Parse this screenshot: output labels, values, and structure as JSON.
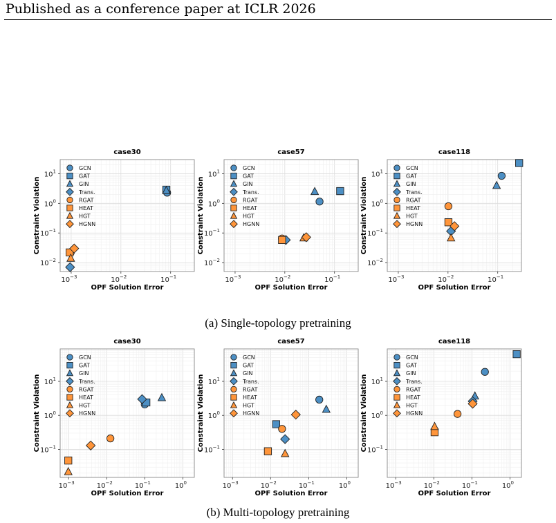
{
  "header": {
    "title": "Published as a conference paper at ICLR 2026"
  },
  "captions": {
    "single": "(a) Single-topology pretraining",
    "multi": "(b) Multi-topology pretraining"
  },
  "colors": {
    "blue": "#4c8fc4",
    "orange": "#ff953a",
    "edge": "#222222"
  },
  "models": [
    {
      "name": "GCN",
      "marker": "circle",
      "color": "blue"
    },
    {
      "name": "GAT",
      "marker": "square",
      "color": "blue"
    },
    {
      "name": "GIN",
      "marker": "triangle",
      "color": "blue"
    },
    {
      "name": "Trans.",
      "marker": "diamond",
      "color": "blue"
    },
    {
      "name": "RGAT",
      "marker": "circle",
      "color": "orange"
    },
    {
      "name": "HEAT",
      "marker": "square",
      "color": "orange"
    },
    {
      "name": "HGT",
      "marker": "triangle",
      "color": "orange"
    },
    {
      "name": "HGNN",
      "marker": "diamond",
      "color": "orange"
    }
  ],
  "chart_data": [
    {
      "type": "scatter",
      "title": "case30",
      "group": "single",
      "xlabel": "OPF Solution Error",
      "ylabel": "Constraint Violation",
      "xscale": "log",
      "yscale": "log",
      "xlim": [
        0.0006,
        0.3
      ],
      "ylim": [
        0.005,
        30
      ],
      "xticks": [
        "10^-3",
        "10^-2",
        "10^-1"
      ],
      "yticks": [
        "10^-2",
        "10^-1",
        "10^0",
        "10^1"
      ],
      "grid": true,
      "legend": "upper-left",
      "points": [
        {
          "series": "GCN",
          "x": 0.085,
          "y": 2.3
        },
        {
          "series": "GAT",
          "x": 0.082,
          "y": 2.9
        },
        {
          "series": "GIN",
          "x": 0.082,
          "y": 2.7
        },
        {
          "series": "Trans.",
          "x": 0.00095,
          "y": 0.007
        },
        {
          "series": "RGAT",
          "x": 0.00098,
          "y": 0.022
        },
        {
          "series": "HEAT",
          "x": 0.00093,
          "y": 0.022
        },
        {
          "series": "HGT",
          "x": 0.00098,
          "y": 0.014
        },
        {
          "series": "HGNN",
          "x": 0.00115,
          "y": 0.03
        }
      ]
    },
    {
      "type": "scatter",
      "title": "case57",
      "group": "single",
      "xlabel": "OPF Solution Error",
      "ylabel": "Constraint Violation",
      "xscale": "log",
      "yscale": "log",
      "xlim": [
        0.0006,
        0.3
      ],
      "ylim": [
        0.005,
        30
      ],
      "xticks": [
        "10^-3",
        "10^-2",
        "10^-1"
      ],
      "yticks": [
        "10^-2",
        "10^-1",
        "10^0",
        "10^1"
      ],
      "grid": true,
      "legend": "upper-left",
      "points": [
        {
          "series": "GCN",
          "x": 0.05,
          "y": 1.15
        },
        {
          "series": "GAT",
          "x": 0.13,
          "y": 2.6
        },
        {
          "series": "GIN",
          "x": 0.04,
          "y": 2.5
        },
        {
          "series": "Trans.",
          "x": 0.0105,
          "y": 0.058
        },
        {
          "series": "RGAT",
          "x": 0.0088,
          "y": 0.065
        },
        {
          "series": "HEAT",
          "x": 0.0088,
          "y": 0.058
        },
        {
          "series": "HGT",
          "x": 0.024,
          "y": 0.068
        },
        {
          "series": "HGNN",
          "x": 0.027,
          "y": 0.072
        }
      ]
    },
    {
      "type": "scatter",
      "title": "case118",
      "group": "single",
      "xlabel": "OPF Solution Error",
      "ylabel": "Constraint Violation",
      "xscale": "log",
      "yscale": "log",
      "xlim": [
        0.0006,
        0.3
      ],
      "ylim": [
        0.005,
        30
      ],
      "xticks": [
        "10^-3",
        "10^-2",
        "10^-1"
      ],
      "yticks": [
        "10^-2",
        "10^-1",
        "10^0",
        "10^1"
      ],
      "grid": true,
      "legend": "upper-left",
      "points": [
        {
          "series": "GCN",
          "x": 0.12,
          "y": 8.5
        },
        {
          "series": "GAT",
          "x": 0.27,
          "y": 23
        },
        {
          "series": "GIN",
          "x": 0.095,
          "y": 4.0
        },
        {
          "series": "Trans.",
          "x": 0.0115,
          "y": 0.115
        },
        {
          "series": "RGAT",
          "x": 0.0102,
          "y": 0.8
        },
        {
          "series": "HEAT",
          "x": 0.0102,
          "y": 0.23
        },
        {
          "series": "HGT",
          "x": 0.0115,
          "y": 0.068
        },
        {
          "series": "HGNN",
          "x": 0.0135,
          "y": 0.17
        }
      ]
    },
    {
      "type": "scatter",
      "title": "case30",
      "group": "multi",
      "xlabel": "OPF Solution Error",
      "ylabel": "Constraint Violation",
      "xscale": "log",
      "yscale": "log",
      "xlim": [
        0.0006,
        2.0
      ],
      "ylim": [
        0.015,
        90
      ],
      "xticks": [
        "10^-3",
        "10^-2",
        "10^-1",
        "10^0"
      ],
      "yticks": [
        "10^-1",
        "10^0",
        "10^1"
      ],
      "grid": true,
      "legend": "upper-left",
      "points": [
        {
          "series": "GCN",
          "x": 0.1,
          "y": 2.1
        },
        {
          "series": "GAT",
          "x": 0.11,
          "y": 2.4
        },
        {
          "series": "GIN",
          "x": 0.28,
          "y": 3.3
        },
        {
          "series": "Trans.",
          "x": 0.085,
          "y": 3.0
        },
        {
          "series": "RGAT",
          "x": 0.0125,
          "y": 0.21
        },
        {
          "series": "HEAT",
          "x": 0.00098,
          "y": 0.047
        },
        {
          "series": "HGT",
          "x": 0.00098,
          "y": 0.022
        },
        {
          "series": "HGNN",
          "x": 0.0038,
          "y": 0.13
        }
      ]
    },
    {
      "type": "scatter",
      "title": "case57",
      "group": "multi",
      "xlabel": "OPF Solution Error",
      "ylabel": "Constraint Violation",
      "xscale": "log",
      "yscale": "log",
      "xlim": [
        0.0006,
        2.0
      ],
      "ylim": [
        0.015,
        90
      ],
      "xticks": [
        "10^-3",
        "10^-2",
        "10^-1",
        "10^0"
      ],
      "yticks": [
        "10^-1",
        "10^0",
        "10^1"
      ],
      "grid": true,
      "legend": "upper-left",
      "points": [
        {
          "series": "GCN",
          "x": 0.19,
          "y": 2.9
        },
        {
          "series": "GAT",
          "x": 0.014,
          "y": 0.55
        },
        {
          "series": "GIN",
          "x": 0.29,
          "y": 1.5
        },
        {
          "series": "Trans.",
          "x": 0.024,
          "y": 0.2
        },
        {
          "series": "RGAT",
          "x": 0.02,
          "y": 0.4
        },
        {
          "series": "HEAT",
          "x": 0.0085,
          "y": 0.088
        },
        {
          "series": "HGT",
          "x": 0.024,
          "y": 0.075
        },
        {
          "series": "HGNN",
          "x": 0.046,
          "y": 1.05
        }
      ]
    },
    {
      "type": "scatter",
      "title": "case118",
      "group": "multi",
      "xlabel": "OPF Solution Error",
      "ylabel": "Constraint Violation",
      "xscale": "log",
      "yscale": "log",
      "xlim": [
        0.0006,
        2.0
      ],
      "ylim": [
        0.015,
        90
      ],
      "xticks": [
        "10^-3",
        "10^-2",
        "10^-1",
        "10^0"
      ],
      "yticks": [
        "10^-1",
        "10^0",
        "10^1"
      ],
      "grid": true,
      "legend": "upper-left",
      "points": [
        {
          "series": "GCN",
          "x": 0.22,
          "y": 19
        },
        {
          "series": "GAT",
          "x": 1.5,
          "y": 63
        },
        {
          "series": "GIN",
          "x": 0.12,
          "y": 3.7
        },
        {
          "series": "Trans.",
          "x": 0.105,
          "y": 2.6
        },
        {
          "series": "RGAT",
          "x": 0.042,
          "y": 1.1
        },
        {
          "series": "HEAT",
          "x": 0.0105,
          "y": 0.32
        },
        {
          "series": "HGT",
          "x": 0.0105,
          "y": 0.47
        },
        {
          "series": "HGNN",
          "x": 0.105,
          "y": 2.2
        }
      ]
    }
  ]
}
